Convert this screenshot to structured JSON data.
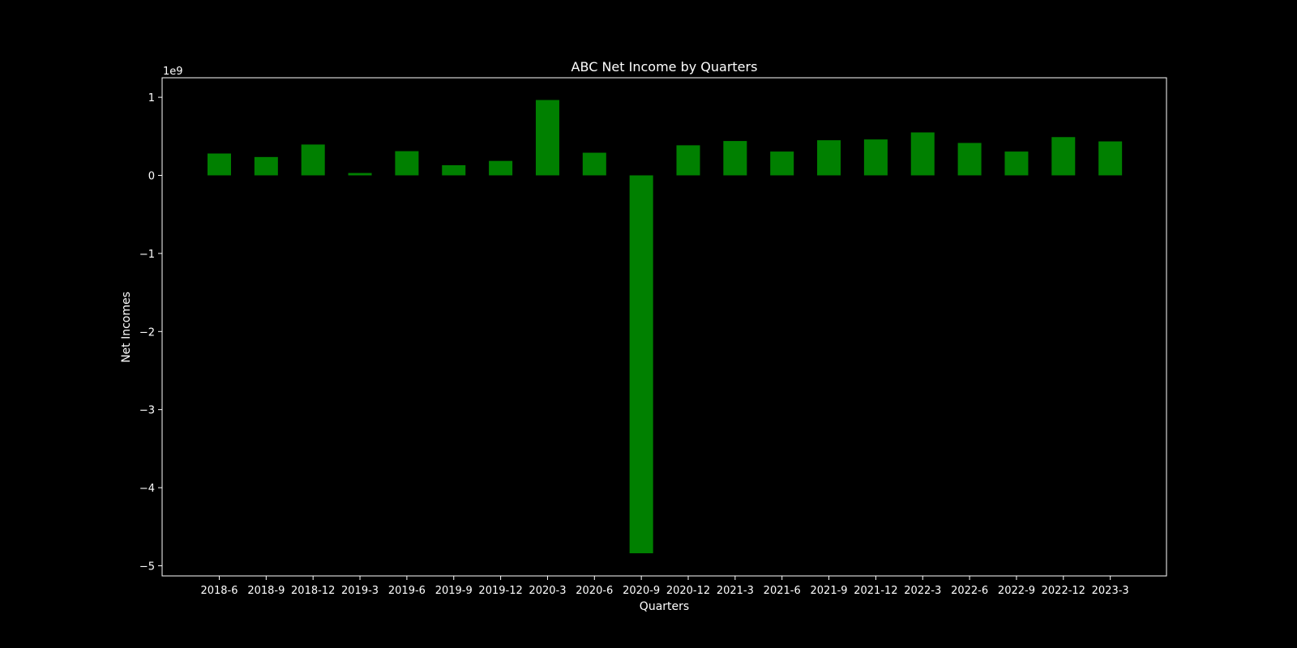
{
  "chart_data": {
    "type": "bar",
    "title": "ABC Net Income by Quarters",
    "xlabel": "Quarters",
    "ylabel": "Net Incomes",
    "y_offset_label": "1e9",
    "categories": [
      "2018-6",
      "2018-9",
      "2018-12",
      "2019-3",
      "2019-6",
      "2019-9",
      "2019-12",
      "2020-3",
      "2020-6",
      "2020-9",
      "2020-12",
      "2021-3",
      "2021-6",
      "2021-9",
      "2021-12",
      "2022-3",
      "2022-6",
      "2022-9",
      "2022-12",
      "2023-3"
    ],
    "values": [
      280000000,
      235000000,
      395000000,
      30000000,
      310000000,
      130000000,
      185000000,
      965000000,
      290000000,
      -4840000000,
      385000000,
      440000000,
      305000000,
      450000000,
      460000000,
      550000000,
      415000000,
      305000000,
      490000000,
      435000000
    ],
    "yticks": [
      1,
      0,
      -1,
      -2,
      -3,
      -4,
      -5
    ],
    "ytick_labels": [
      "1",
      "0",
      "−1",
      "−2",
      "−3",
      "−4",
      "−5"
    ],
    "ylim": [
      -5130000000,
      1250000000
    ],
    "grid": false,
    "colors": {
      "background": "#000000",
      "bar": "#008000",
      "axes": "#ffffff",
      "text": "#ffffff"
    }
  }
}
